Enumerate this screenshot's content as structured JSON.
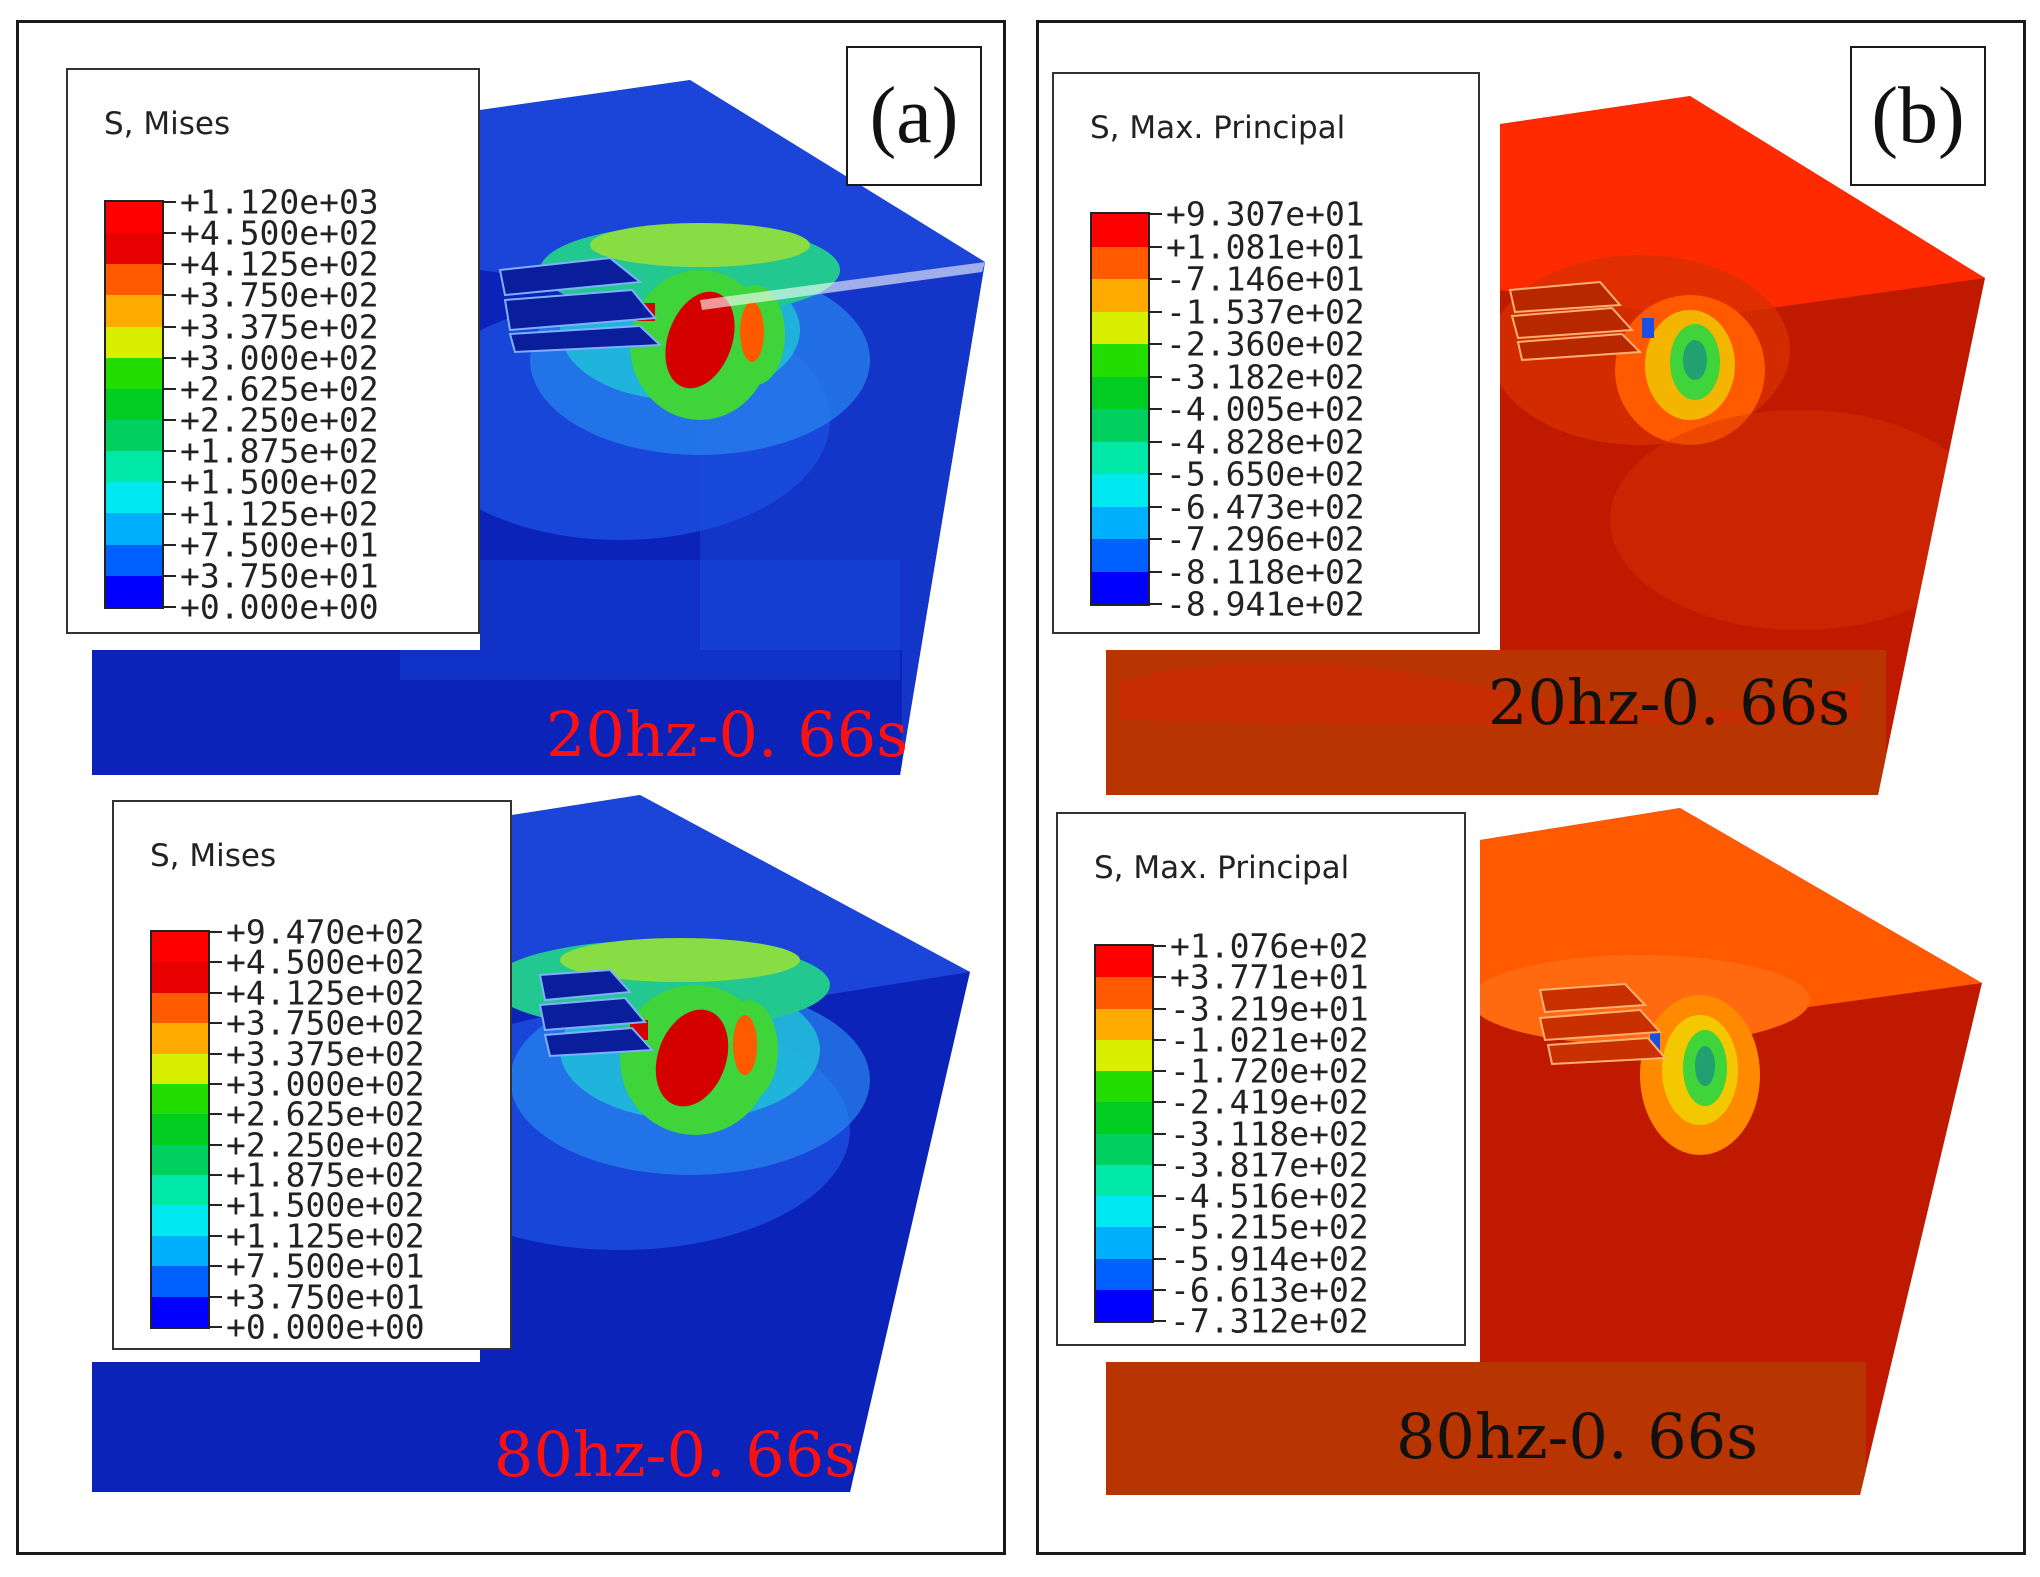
{
  "figure": {
    "panels": [
      {
        "label": "(a)",
        "subplots": [
          {
            "legend_title": "S, Mises",
            "colors": [
              "#ff0000",
              "#e60000",
              "#ff5a00",
              "#ffaa00",
              "#d8f000",
              "#22dd00",
              "#00cc22",
              "#00d060",
              "#00e8a8",
              "#00e8f0",
              "#00b0ff",
              "#0060ff",
              "#0000ff"
            ],
            "values": [
              "+1.120e+03",
              "+4.500e+02",
              "+4.125e+02",
              "+3.750e+02",
              "+3.375e+02",
              "+3.000e+02",
              "+2.625e+02",
              "+2.250e+02",
              "+1.875e+02",
              "+1.500e+02",
              "+1.125e+02",
              "+7.500e+01",
              "+3.750e+01",
              "+0.000e+00"
            ],
            "caption": "20hz-0. 66s",
            "caption_color": "#ff1010"
          },
          {
            "legend_title": "S, Mises",
            "colors": [
              "#ff0000",
              "#e60000",
              "#ff5a00",
              "#ffaa00",
              "#d8f000",
              "#22dd00",
              "#00cc22",
              "#00d060",
              "#00e8a8",
              "#00e8f0",
              "#00b0ff",
              "#0060ff",
              "#0000ff"
            ],
            "values": [
              "+9.470e+02",
              "+4.500e+02",
              "+4.125e+02",
              "+3.750e+02",
              "+3.375e+02",
              "+3.000e+02",
              "+2.625e+02",
              "+2.250e+02",
              "+1.875e+02",
              "+1.500e+02",
              "+1.125e+02",
              "+7.500e+01",
              "+3.750e+01",
              "+0.000e+00"
            ],
            "caption": "80hz-0. 66s",
            "caption_color": "#ff1010"
          }
        ]
      },
      {
        "label": "(b)",
        "subplots": [
          {
            "legend_title": "S, Max. Principal",
            "colors": [
              "#ff0000",
              "#ff5a00",
              "#ffaa00",
              "#d8f000",
              "#22dd00",
              "#00cc22",
              "#00d060",
              "#00e8a8",
              "#00e8f0",
              "#00b0ff",
              "#0060ff",
              "#0000ff"
            ],
            "values": [
              "+9.307e+01",
              "+1.081e+01",
              "-7.146e+01",
              "-1.537e+02",
              "-2.360e+02",
              "-3.182e+02",
              "-4.005e+02",
              "-4.828e+02",
              "-5.650e+02",
              "-6.473e+02",
              "-7.296e+02",
              "-8.118e+02",
              "-8.941e+02"
            ],
            "caption": "20hz-0. 66s",
            "caption_color": "#111111"
          },
          {
            "legend_title": "S, Max. Principal",
            "colors": [
              "#ff0000",
              "#ff5a00",
              "#ffaa00",
              "#d8f000",
              "#22dd00",
              "#00cc22",
              "#00d060",
              "#00e8a8",
              "#00e8f0",
              "#00b0ff",
              "#0060ff",
              "#0000ff"
            ],
            "values": [
              "+1.076e+02",
              "+3.771e+01",
              "-3.219e+01",
              "-1.021e+02",
              "-1.720e+02",
              "-2.419e+02",
              "-3.118e+02",
              "-3.817e+02",
              "-4.516e+02",
              "-5.215e+02",
              "-5.914e+02",
              "-6.613e+02",
              "-7.312e+02"
            ],
            "caption": "80hz-0. 66s",
            "caption_color": "#111111"
          }
        ]
      }
    ]
  },
  "palette": {
    "blue_dark": "#0b23b8",
    "blue_mid": "#1a4fe0",
    "blue_light": "#2a86f0",
    "cyan": "#20c8d8",
    "teal": "#22c890",
    "green": "#3ed43a",
    "green_light": "#88dd44",
    "red": "#d40000",
    "red_dark": "#bf1a00",
    "orange": "#ff5a00",
    "orange_dark": "#b83400",
    "yellow": "#f0dc00"
  }
}
